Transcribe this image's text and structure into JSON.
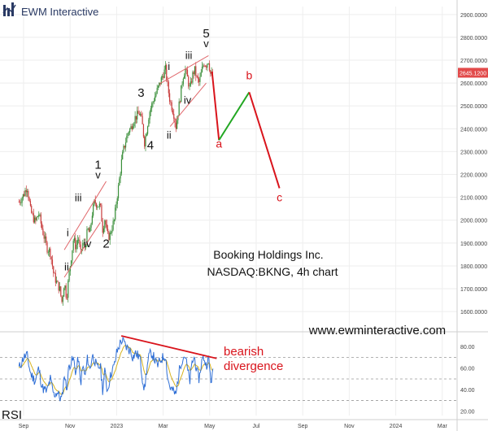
{
  "brand": {
    "name": "EWM Interactive",
    "color": "#2a3a64"
  },
  "colors": {
    "bull_candle": "#3a8f3a",
    "bear_candle": "#c83c3c",
    "wave_line_red": "#d9141c",
    "wave_line_green": "#22a722",
    "channel": "#e0676b",
    "rsi_main": "#2f6fd6",
    "rsi_signal": "#d6b21d",
    "grid": "#eeeeee",
    "price_tag": "#e24a4a"
  },
  "chart_data": [
    {
      "type": "candlestick",
      "instrument_text": [
        "Booking Holdings Inc.",
        "NASDAQ:BKNG, 4h chart"
      ],
      "website": "www.ewminteractive.com",
      "y_ticks": [
        "2900.0000",
        "2800.0000",
        "2700.0000",
        "2600.0000",
        "2500.0000",
        "2400.0000",
        "2300.0000",
        "2200.0000",
        "2100.0000",
        "2000.0000",
        "1900.0000",
        "1800.0000",
        "1700.0000",
        "1600.0000"
      ],
      "y_tick_values": [
        2900,
        2800,
        2700,
        2600,
        2500,
        2400,
        2300,
        2200,
        2100,
        2000,
        1900,
        1800,
        1700,
        1600
      ],
      "ylim": [
        1540,
        2935
      ],
      "x_ticks": [
        "Sep",
        "Nov",
        "2023",
        "Mar",
        "May",
        "Jul",
        "Sep",
        "Nov",
        "2024",
        "Mar"
      ],
      "x_tick_month_offsets": [
        0,
        2,
        4,
        6,
        8,
        10,
        12,
        14,
        16,
        18
      ],
      "last_price_tag": "2645.1200",
      "last_price": 2645.12,
      "price_path": [
        [
          -0.2,
          2080
        ],
        [
          0.0,
          2110
        ],
        [
          0.15,
          2150
        ],
        [
          0.3,
          2040
        ],
        [
          0.5,
          1990
        ],
        [
          0.65,
          2030
        ],
        [
          0.8,
          1960
        ],
        [
          1.0,
          1880
        ],
        [
          1.15,
          1860
        ],
        [
          1.3,
          1760
        ],
        [
          1.45,
          1720
        ],
        [
          1.55,
          1700
        ],
        [
          1.65,
          1640
        ],
        [
          1.75,
          1730
        ],
        [
          1.85,
          1660
        ],
        [
          1.95,
          1760
        ],
        [
          2.05,
          1840
        ],
        [
          2.15,
          1920
        ],
        [
          2.25,
          1880
        ],
        [
          2.35,
          1930
        ],
        [
          2.45,
          1850
        ],
        [
          2.55,
          1900
        ],
        [
          2.65,
          1880
        ],
        [
          2.75,
          1960
        ],
        [
          2.85,
          1940
        ],
        [
          2.95,
          2030
        ],
        [
          3.05,
          2080
        ],
        [
          3.15,
          2070
        ],
        [
          3.3,
          2060
        ],
        [
          3.4,
          1960
        ],
        [
          3.5,
          2010
        ],
        [
          3.6,
          1930
        ],
        [
          3.7,
          1930
        ],
        [
          3.8,
          1970
        ],
        [
          3.9,
          2000
        ],
        [
          4.0,
          2090
        ],
        [
          4.1,
          2160
        ],
        [
          4.2,
          2250
        ],
        [
          4.3,
          2310
        ],
        [
          4.4,
          2350
        ],
        [
          4.5,
          2390
        ],
        [
          4.6,
          2400
        ],
        [
          4.7,
          2430
        ],
        [
          4.8,
          2450
        ],
        [
          4.9,
          2460
        ],
        [
          5.0,
          2470
        ],
        [
          5.1,
          2420
        ],
        [
          5.2,
          2340
        ],
        [
          5.3,
          2400
        ],
        [
          5.4,
          2470
        ],
        [
          5.5,
          2500
        ],
        [
          5.6,
          2530
        ],
        [
          5.75,
          2570
        ],
        [
          5.9,
          2610
        ],
        [
          6.0,
          2640
        ],
        [
          6.1,
          2660
        ],
        [
          6.2,
          2580
        ],
        [
          6.3,
          2520
        ],
        [
          6.45,
          2470
        ],
        [
          6.55,
          2410
        ],
        [
          6.65,
          2480
        ],
        [
          6.75,
          2550
        ],
        [
          6.85,
          2630
        ],
        [
          6.95,
          2660
        ],
        [
          7.05,
          2620
        ],
        [
          7.15,
          2570
        ],
        [
          7.25,
          2630
        ],
        [
          7.35,
          2660
        ],
        [
          7.45,
          2620
        ],
        [
          7.55,
          2600
        ],
        [
          7.65,
          2650
        ],
        [
          7.75,
          2690
        ],
        [
          7.85,
          2680
        ],
        [
          7.95,
          2700
        ],
        [
          8.05,
          2630
        ],
        [
          8.15,
          2645
        ]
      ]
    },
    {
      "type": "line",
      "title": "RSI",
      "y_ticks": [
        "80.00",
        "60.00",
        "40.00",
        "20.00"
      ],
      "y_tick_values": [
        80,
        60,
        40,
        20
      ],
      "ylim": [
        16,
        90
      ],
      "levels": [
        70,
        50,
        30
      ],
      "path": [
        [
          -0.2,
          60
        ],
        [
          0.0,
          70
        ],
        [
          0.15,
          72
        ],
        [
          0.3,
          55
        ],
        [
          0.5,
          48
        ],
        [
          0.65,
          60
        ],
        [
          0.8,
          42
        ],
        [
          1.0,
          38
        ],
        [
          1.15,
          50
        ],
        [
          1.3,
          35
        ],
        [
          1.45,
          38
        ],
        [
          1.55,
          33
        ],
        [
          1.65,
          31
        ],
        [
          1.75,
          55
        ],
        [
          1.85,
          40
        ],
        [
          1.95,
          62
        ],
        [
          2.05,
          66
        ],
        [
          2.15,
          68
        ],
        [
          2.25,
          55
        ],
        [
          2.35,
          70
        ],
        [
          2.45,
          45
        ],
        [
          2.55,
          62
        ],
        [
          2.65,
          52
        ],
        [
          2.75,
          70
        ],
        [
          2.85,
          58
        ],
        [
          2.95,
          72
        ],
        [
          3.05,
          68
        ],
        [
          3.15,
          60
        ],
        [
          3.3,
          62
        ],
        [
          3.4,
          40
        ],
        [
          3.5,
          58
        ],
        [
          3.6,
          38
        ],
        [
          3.7,
          50
        ],
        [
          3.8,
          58
        ],
        [
          3.9,
          62
        ],
        [
          4.0,
          74
        ],
        [
          4.1,
          80
        ],
        [
          4.2,
          86
        ],
        [
          4.3,
          84
        ],
        [
          4.4,
          80
        ],
        [
          4.5,
          78
        ],
        [
          4.6,
          76
        ],
        [
          4.7,
          70
        ],
        [
          4.8,
          74
        ],
        [
          4.9,
          72
        ],
        [
          5.0,
          70
        ],
        [
          5.1,
          52
        ],
        [
          5.2,
          40
        ],
        [
          5.3,
          60
        ],
        [
          5.4,
          72
        ],
        [
          5.5,
          74
        ],
        [
          5.6,
          70
        ],
        [
          5.75,
          62
        ],
        [
          5.9,
          68
        ],
        [
          6.0,
          70
        ],
        [
          6.1,
          72
        ],
        [
          6.2,
          50
        ],
        [
          6.3,
          42
        ],
        [
          6.45,
          38
        ],
        [
          6.55,
          35
        ],
        [
          6.65,
          52
        ],
        [
          6.75,
          64
        ],
        [
          6.85,
          70
        ],
        [
          6.95,
          72
        ],
        [
          7.05,
          58
        ],
        [
          7.15,
          48
        ],
        [
          7.25,
          66
        ],
        [
          7.35,
          70
        ],
        [
          7.45,
          56
        ],
        [
          7.55,
          50
        ],
        [
          7.65,
          66
        ],
        [
          7.75,
          70
        ],
        [
          7.85,
          62
        ],
        [
          7.95,
          70
        ],
        [
          8.05,
          48
        ],
        [
          8.15,
          56
        ]
      ],
      "annotation": [
        "bearish",
        "divergence"
      ]
    }
  ],
  "wave_labels": {
    "black": [
      {
        "text": "1",
        "m": 3.2,
        "v": 2225,
        "big": true
      },
      {
        "text": "v",
        "m": 3.2,
        "v": 2183
      },
      {
        "text": "iii",
        "m": 2.35,
        "v": 2082
      },
      {
        "text": "i",
        "m": 1.9,
        "v": 1930
      },
      {
        "text": "iv",
        "m": 2.75,
        "v": 1882
      },
      {
        "text": "ii",
        "m": 1.85,
        "v": 1780
      },
      {
        "text": "2",
        "m": 3.55,
        "v": 1880,
        "big": true
      },
      {
        "text": "3",
        "m": 5.05,
        "v": 2540,
        "big": true
      },
      {
        "text": "4",
        "m": 5.45,
        "v": 2310,
        "big": true
      },
      {
        "text": "5",
        "m": 7.85,
        "v": 2800,
        "big": true
      },
      {
        "text": "v",
        "m": 7.85,
        "v": 2757
      },
      {
        "text": "iii",
        "m": 7.1,
        "v": 2705
      },
      {
        "text": "i",
        "m": 6.25,
        "v": 2658
      },
      {
        "text": "iv",
        "m": 7.05,
        "v": 2510
      },
      {
        "text": "ii",
        "m": 6.25,
        "v": 2357
      }
    ],
    "red": [
      {
        "text": "a",
        "m": 8.4,
        "v": 2318
      },
      {
        "text": "b",
        "m": 9.7,
        "v": 2617
      },
      {
        "text": "c",
        "m": 11.0,
        "v": 2083
      }
    ]
  },
  "projection": {
    "first_leg": [
      [
        8.1,
        2650
      ],
      [
        8.4,
        2350
      ]
    ],
    "second_leg": [
      [
        8.4,
        2350
      ],
      [
        9.7,
        2560
      ]
    ],
    "third_leg": [
      [
        9.7,
        2560
      ],
      [
        11.0,
        2140
      ]
    ]
  },
  "channels": [
    [
      [
        1.75,
        1870
      ],
      [
        3.55,
        2170
      ]
    ],
    [
      [
        1.75,
        1750
      ],
      [
        3.3,
        1990
      ]
    ],
    [
      [
        5.9,
        2600
      ],
      [
        7.95,
        2720
      ]
    ],
    [
      [
        6.3,
        2410
      ],
      [
        7.85,
        2600
      ]
    ]
  ],
  "rsi_divergence_line": [
    [
      4.2,
      90
    ],
    [
      8.3,
      69
    ]
  ]
}
